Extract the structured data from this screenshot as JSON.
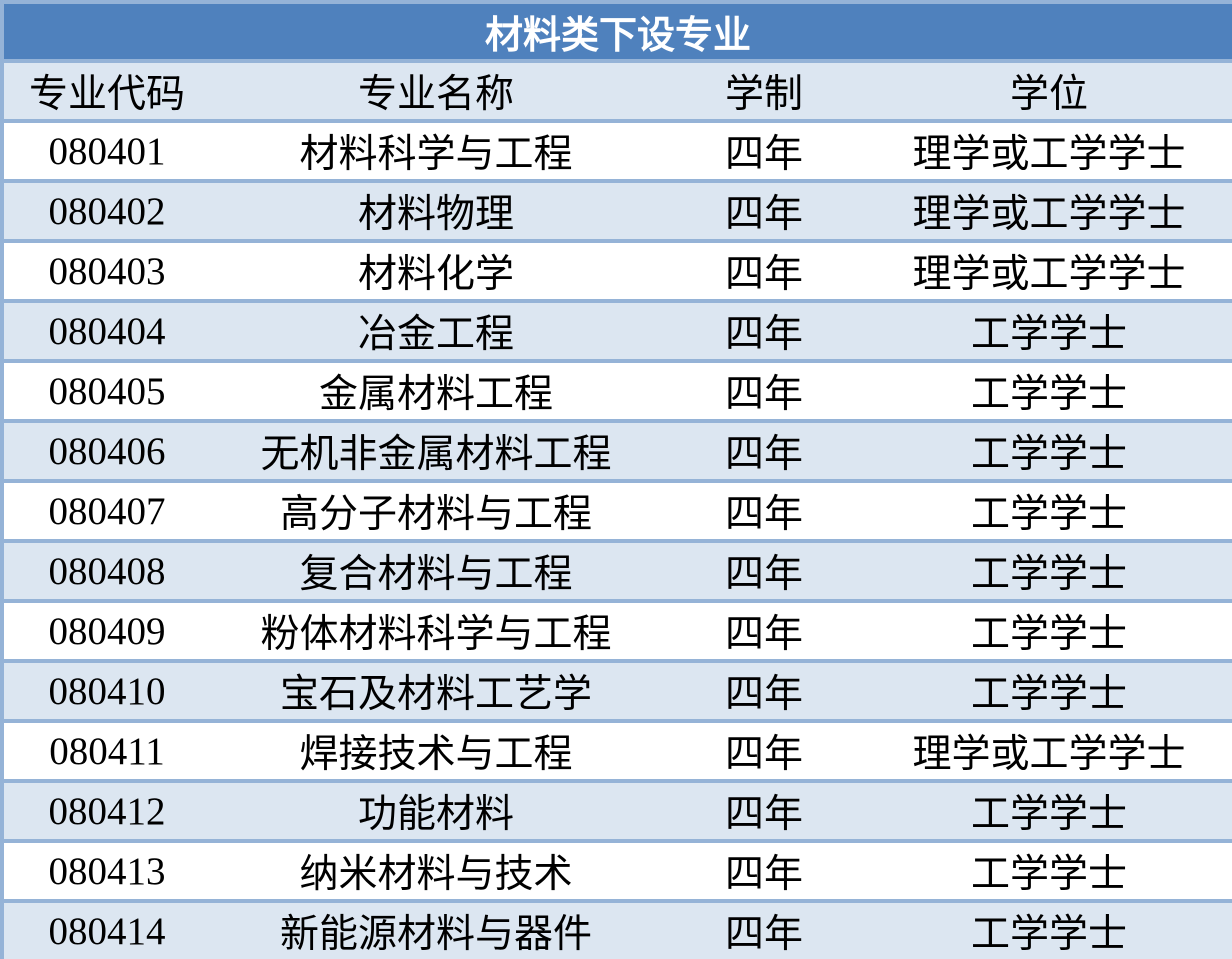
{
  "title": "材料类下设专业",
  "headers": [
    "专业代码",
    "专业名称",
    "学制",
    "学位"
  ],
  "colors": {
    "title_bg": "#4f81bd",
    "row_alt": "#dce6f1",
    "border": "#95b3d7"
  },
  "rows": [
    [
      "080401",
      "材料科学与工程",
      "四年",
      "理学或工学学士"
    ],
    [
      "080402",
      "材料物理",
      "四年",
      "理学或工学学士"
    ],
    [
      "080403",
      "材料化学",
      "四年",
      "理学或工学学士"
    ],
    [
      "080404",
      "冶金工程",
      "四年",
      "工学学士"
    ],
    [
      "080405",
      "金属材料工程",
      "四年",
      "工学学士"
    ],
    [
      "080406",
      "无机非金属材料工程",
      "四年",
      "工学学士"
    ],
    [
      "080407",
      "高分子材料与工程",
      "四年",
      "工学学士"
    ],
    [
      "080408",
      "复合材料与工程",
      "四年",
      "工学学士"
    ],
    [
      "080409",
      "粉体材料科学与工程",
      "四年",
      "工学学士"
    ],
    [
      "080410",
      "宝石及材料工艺学",
      "四年",
      "工学学士"
    ],
    [
      "080411",
      "焊接技术与工程",
      "四年",
      "理学或工学学士"
    ],
    [
      "080412",
      "功能材料",
      "四年",
      "工学学士"
    ],
    [
      "080413",
      "纳米材料与技术",
      "四年",
      "工学学士"
    ],
    [
      "080414",
      "新能源材料与器件",
      "四年",
      "工学学士"
    ]
  ]
}
